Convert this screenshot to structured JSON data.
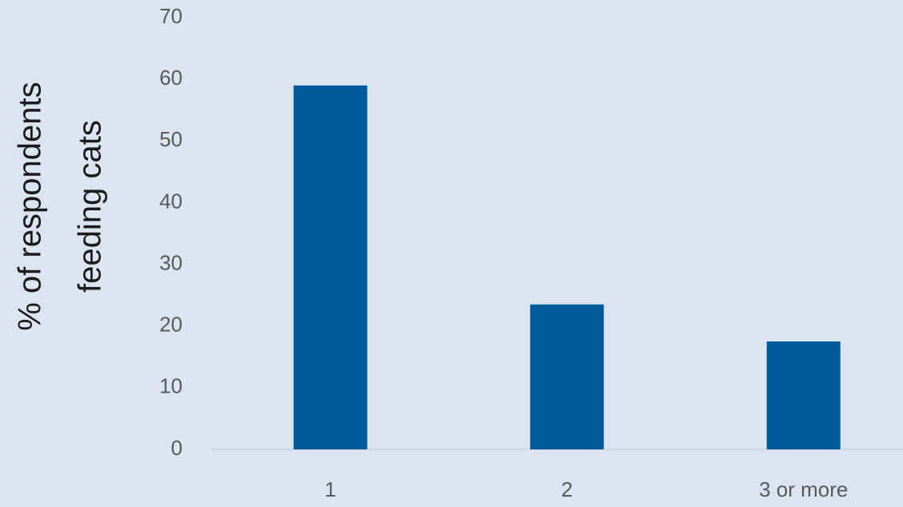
{
  "chart_data": {
    "type": "bar",
    "y_label": [
      "% of respondents",
      "feeding cats"
    ],
    "categories": [
      "1",
      "2",
      "3 or more"
    ],
    "values": [
      59,
      23.5,
      17.5
    ],
    "color": "#005a9c",
    "ylim": [
      0,
      70
    ],
    "yticks": [
      0,
      10,
      20,
      30,
      40,
      50,
      60,
      70
    ],
    "grid": false
  }
}
